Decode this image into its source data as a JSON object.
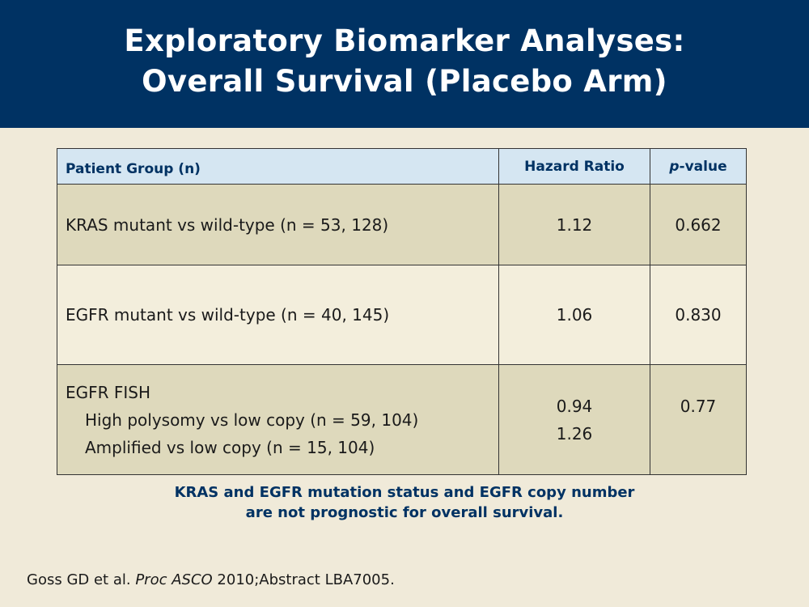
{
  "title": {
    "line1": "Exploratory Biomarker Analyses:",
    "line2": "Overall Survival (Placebo Arm)"
  },
  "table": {
    "headers": {
      "group": "Patient Group (n)",
      "hazard_ratio": "Hazard Ratio",
      "p_value_italic": "p",
      "p_value_rest": "-value"
    },
    "rows": [
      {
        "group": "KRAS mutant vs wild-type (n = 53, 128)",
        "hazard_ratio": "1.12",
        "p_value": "0.662"
      },
      {
        "group": "EGFR mutant vs wild-type (n = 40, 145)",
        "hazard_ratio": "1.06",
        "p_value": "0.830"
      },
      {
        "group_heading": "EGFR FISH",
        "subrows": [
          {
            "group": "High polysomy vs low copy (n = 59, 104)",
            "hazard_ratio": "0.94"
          },
          {
            "group": "Amplified vs low copy (n = 15, 104)",
            "hazard_ratio": "1.26"
          }
        ],
        "p_value": "0.77"
      }
    ]
  },
  "conclusion": {
    "line1": "KRAS and EGFR mutation status and EGFR copy number",
    "line2": "are not prognostic for overall survival."
  },
  "citation": {
    "authors": "Goss GD et al.",
    "journal": "Proc ASCO",
    "rest": "2010;Abstract LBA7005."
  }
}
